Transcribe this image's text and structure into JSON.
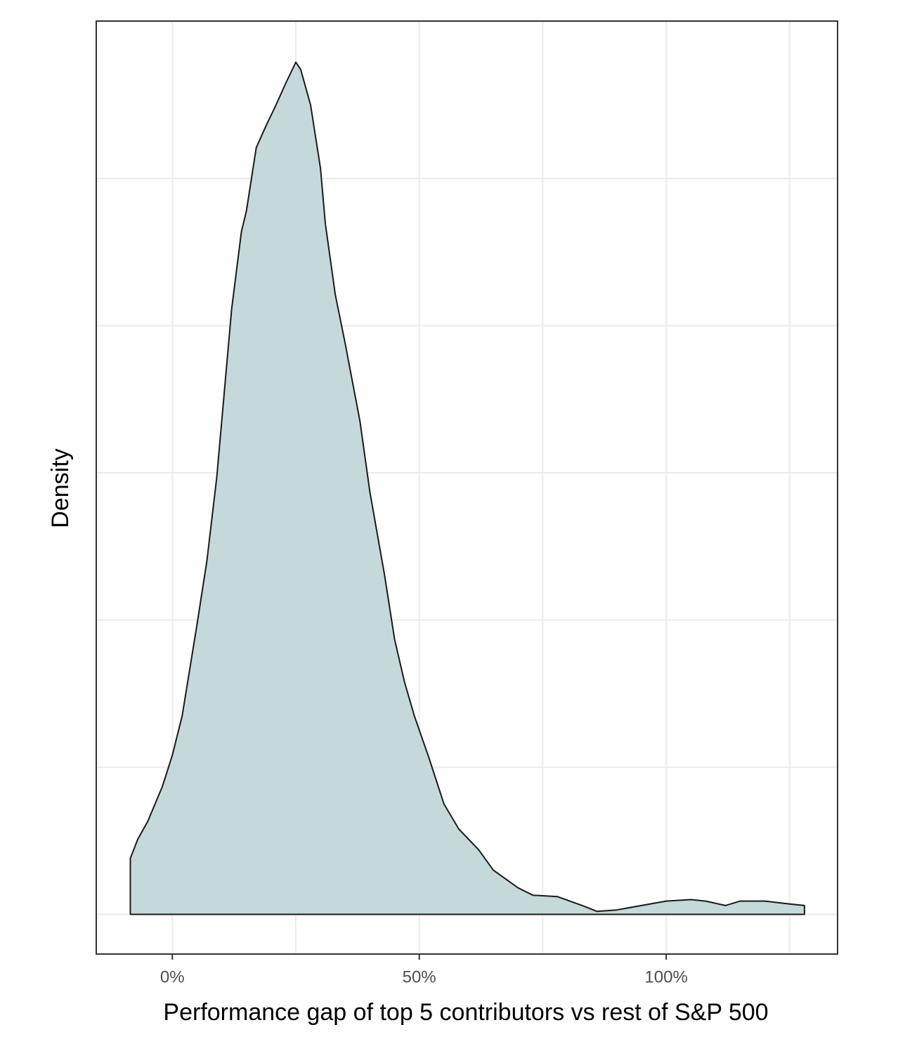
{
  "chart_data": {
    "type": "area",
    "x_label": "Performance gap of top 5 contributors vs rest of S&P 500",
    "y_label": "Density",
    "x": [
      -8.5,
      -7,
      -5,
      -2,
      0,
      2,
      5,
      7,
      9,
      12,
      14,
      15,
      17,
      19,
      21,
      23,
      25,
      26,
      28,
      30,
      31,
      33,
      35,
      38,
      40,
      43,
      45,
      47,
      49,
      52,
      55,
      58,
      62,
      65,
      70,
      73,
      78,
      83,
      86,
      90,
      95,
      100,
      105,
      108,
      112,
      115,
      120,
      125,
      128
    ],
    "values": [
      0.38,
      0.51,
      0.63,
      0.87,
      1.08,
      1.35,
      1.97,
      2.4,
      2.97,
      4.11,
      4.64,
      4.78,
      5.21,
      5.36,
      5.5,
      5.65,
      5.79,
      5.74,
      5.5,
      5.07,
      4.69,
      4.21,
      3.88,
      3.35,
      2.87,
      2.3,
      1.87,
      1.58,
      1.35,
      1.06,
      0.75,
      0.58,
      0.44,
      0.3,
      0.18,
      0.13,
      0.12,
      0.06,
      0.02,
      0.03,
      0.06,
      0.09,
      0.1,
      0.09,
      0.06,
      0.09,
      0.09,
      0.07,
      0.06
    ],
    "color": "#c5d9da",
    "line_color": "#1a1a1a",
    "xlim": [
      -15.4,
      134.7
    ],
    "ylim": [
      -0.27,
      6.07
    ],
    "xticks": [
      {
        "value": 0,
        "label": "0%"
      },
      {
        "value": 50,
        "label": "50%"
      },
      {
        "value": 100,
        "label": "100%"
      }
    ],
    "x_minor_grid": [
      25,
      75,
      125
    ],
    "yticks": [
      0,
      1,
      2,
      3,
      4,
      5
    ],
    "grid": true
  }
}
